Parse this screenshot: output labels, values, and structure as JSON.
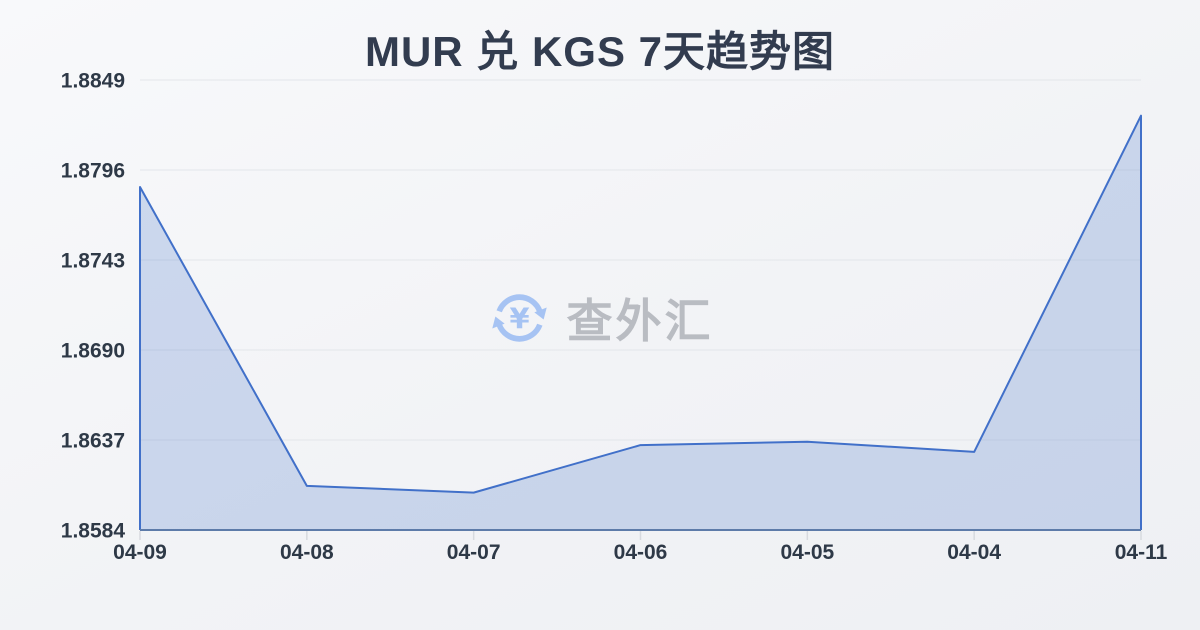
{
  "header": {
    "title": "MUR 兑 KGS 7天趋势图"
  },
  "watermark": {
    "icon": "currency-exchange-icon",
    "text": "查外汇",
    "icon_color": "#a6c3f3",
    "text_color": "#b9bcc2"
  },
  "chart_data": {
    "type": "area",
    "title": "MUR 兑 KGS 7天趋势图",
    "xlabel": "",
    "ylabel": "",
    "categories": [
      "04-09",
      "04-08",
      "04-07",
      "04-06",
      "04-05",
      "04-04",
      "04-11"
    ],
    "values": [
      1.8786,
      1.861,
      1.8606,
      1.8634,
      1.8636,
      1.863,
      1.8828
    ],
    "y_ticks": [
      1.8849,
      1.8796,
      1.8743,
      1.869,
      1.8637,
      1.8584
    ],
    "ylim": [
      1.8584,
      1.8849
    ],
    "grid": true,
    "legend": "none",
    "colors": {
      "line": "#4170c9",
      "fill": "rgba(80,122,205,0.25)",
      "axis": "#5d7ba9",
      "grid": "#e3e6ea",
      "tick": "#d7dadf",
      "label": "#2e3947"
    }
  }
}
